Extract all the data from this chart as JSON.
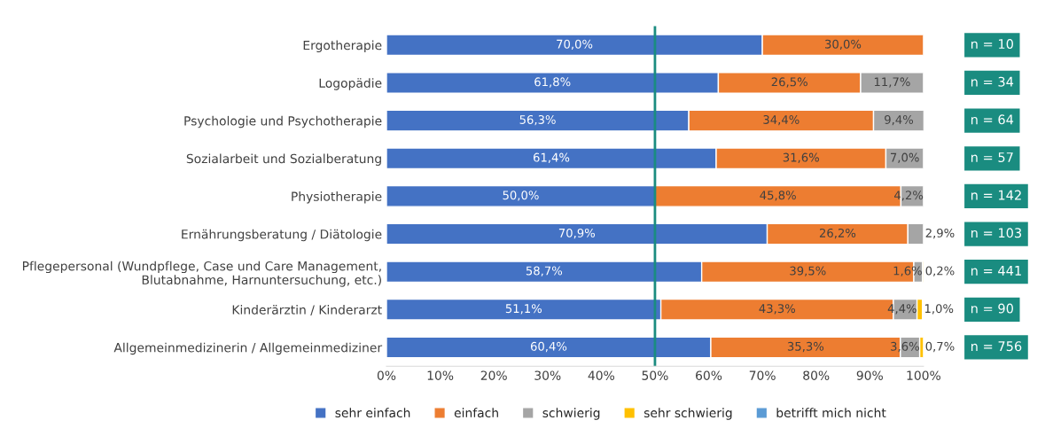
{
  "chart_data": {
    "type": "bar",
    "orientation": "horizontal",
    "stacked": true,
    "categories": [
      "Ergotherapie",
      "Logopädie",
      "Psychologie und Psychotherapie",
      "Sozialarbeit und Sozialberatung",
      "Physiotherapie",
      "Ernährungsberatung / Diätologie",
      "Pflegepersonal (Wundpflege, Case und Care Management,\nBlutabnahme, Harnuntersuchung, etc.)",
      "Kinderärztin / Kinderarzt",
      "Allgemeinmedizinerin / Allgemeinmediziner"
    ],
    "series": [
      {
        "name": "sehr einfach",
        "color": "#4472c4",
        "values": [
          70.0,
          61.8,
          56.3,
          61.4,
          50.0,
          70.9,
          58.7,
          51.1,
          60.4
        ],
        "value_labels": [
          "70,0%",
          "61,8%",
          "56,3%",
          "61,4%",
          "50,0%",
          "70,9%",
          "58,7%",
          "51,1%",
          "60,4%"
        ]
      },
      {
        "name": "einfach",
        "color": "#ed7d31",
        "values": [
          30.0,
          26.5,
          34.4,
          31.6,
          45.8,
          26.2,
          39.5,
          43.3,
          35.3
        ],
        "value_labels": [
          "30,0%",
          "26,5%",
          "34,4%",
          "31,6%",
          "45,8%",
          "26,2%",
          "39,5%",
          "43,3%",
          "35,3%"
        ]
      },
      {
        "name": "schwierig",
        "color": "#a5a5a5",
        "values": [
          null,
          11.7,
          9.4,
          7.0,
          4.2,
          2.9,
          1.6,
          4.4,
          3.6
        ],
        "value_labels": [
          null,
          "11,7%",
          "9,4%",
          "7,0%",
          "4,2%",
          "2,9%",
          "1,6%",
          "4,4%",
          "3,6%"
        ]
      },
      {
        "name": "sehr schwierig",
        "color": "#ffc000",
        "values": [
          null,
          null,
          null,
          null,
          null,
          null,
          0.2,
          1.0,
          0.7
        ],
        "value_labels": [
          null,
          null,
          null,
          null,
          null,
          null,
          "0,2%",
          "1,0%",
          "0,7%"
        ]
      },
      {
        "name": "betrifft mich nicht",
        "color": "#5b9bd5",
        "values": [
          null,
          null,
          null,
          null,
          null,
          null,
          null,
          null,
          null
        ]
      }
    ],
    "xlim": [
      0,
      100
    ],
    "xticks": [
      {
        "value": 0,
        "label": "0%"
      },
      {
        "value": 10,
        "label": "10%"
      },
      {
        "value": 20,
        "label": "20%"
      },
      {
        "value": 30,
        "label": "30%"
      },
      {
        "value": 40,
        "label": "40%"
      },
      {
        "value": 50,
        "label": "50%"
      },
      {
        "value": 60,
        "label": "60%"
      },
      {
        "value": 70,
        "label": "70%"
      },
      {
        "value": 80,
        "label": "80%"
      },
      {
        "value": 90,
        "label": "90%"
      },
      {
        "value": 100,
        "label": "100%"
      }
    ],
    "ref_lines": [
      {
        "axis": "x",
        "value": 50,
        "color": "#1a8c80"
      }
    ],
    "annotations": [
      "n = 10",
      "n = 34",
      "n = 64",
      "n = 57",
      "n = 142",
      "n = 103",
      "n = 441",
      "n = 90",
      "n = 756"
    ],
    "legend": "bottom",
    "grid": false
  }
}
